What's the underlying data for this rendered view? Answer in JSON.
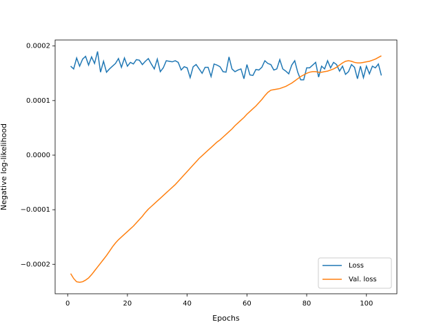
{
  "chart_data": {
    "type": "line",
    "x_label": "Epochs",
    "y_label": "Negative log-likelihood",
    "x": [
      1,
      2,
      3,
      4,
      5,
      6,
      7,
      8,
      9,
      10,
      11,
      12,
      13,
      14,
      15,
      16,
      17,
      18,
      19,
      20,
      21,
      22,
      23,
      24,
      25,
      26,
      27,
      28,
      29,
      30,
      31,
      32,
      33,
      34,
      35,
      36,
      37,
      38,
      39,
      40,
      41,
      42,
      43,
      44,
      45,
      46,
      47,
      48,
      49,
      50,
      51,
      52,
      53,
      54,
      55,
      56,
      57,
      58,
      59,
      60,
      61,
      62,
      63,
      64,
      65,
      66,
      67,
      68,
      69,
      70,
      71,
      72,
      73,
      74,
      75,
      76,
      77,
      78,
      79,
      80,
      81,
      82,
      83,
      84,
      85,
      86,
      87,
      88,
      89,
      90,
      91,
      92,
      93,
      94,
      95,
      96,
      97,
      98,
      99,
      100,
      101,
      102,
      103,
      104,
      105
    ],
    "series": [
      {
        "name": "Loss",
        "color": "#1f77b4",
        "values": [
          0.000163,
          0.000158,
          0.000178,
          0.000163,
          0.000176,
          0.000181,
          0.000165,
          0.00018,
          0.000168,
          0.00019,
          0.000152,
          0.000172,
          0.000152,
          0.000158,
          0.000163,
          0.000168,
          0.000177,
          0.000161,
          0.000178,
          0.000163,
          0.00017,
          0.000167,
          0.000175,
          0.000174,
          0.000166,
          0.000172,
          0.000177,
          0.000167,
          0.000158,
          0.000176,
          0.000153,
          0.00016,
          0.000173,
          0.000172,
          0.000171,
          0.000173,
          0.00017,
          0.000156,
          0.000162,
          0.00016,
          0.000142,
          0.000162,
          0.000166,
          0.000158,
          0.00015,
          0.000161,
          0.000161,
          0.000144,
          0.000167,
          0.000165,
          0.000162,
          0.000153,
          0.000152,
          0.00018,
          0.000158,
          0.000153,
          0.000156,
          0.000158,
          0.00014,
          0.000166,
          0.000147,
          0.000146,
          0.000157,
          0.000156,
          0.000161,
          0.000173,
          0.000168,
          0.000166,
          0.000156,
          0.000158,
          0.000175,
          0.000158,
          0.000154,
          0.000149,
          0.000165,
          0.000173,
          0.000152,
          0.000138,
          0.000138,
          0.00016,
          0.00016,
          0.000165,
          0.00017,
          0.000143,
          0.000163,
          0.000158,
          0.000173,
          0.00016,
          0.00017,
          0.000166,
          0.000154,
          0.000163,
          0.000148,
          0.000153,
          0.000166,
          0.000161,
          0.00014,
          0.000163,
          0.000142,
          0.000163,
          0.000149,
          0.000163,
          0.00016,
          0.000167,
          0.000146
        ]
      },
      {
        "name": "Val. loss",
        "color": "#ff7f0e",
        "values": [
          -0.000217,
          -0.000226,
          -0.000232,
          -0.000233,
          -0.000232,
          -0.000229,
          -0.000225,
          -0.000219,
          -0.000212,
          -0.000205,
          -0.000198,
          -0.000191,
          -0.000184,
          -0.000176,
          -0.000168,
          -0.000161,
          -0.000155,
          -0.00015,
          -0.000145,
          -0.00014,
          -0.000135,
          -0.00013,
          -0.000124,
          -0.000118,
          -0.000112,
          -0.000105,
          -9.9e-05,
          -9.4e-05,
          -8.9e-05,
          -8.4e-05,
          -7.9e-05,
          -7.4e-05,
          -6.9e-05,
          -6.4e-05,
          -5.9e-05,
          -5.4e-05,
          -4.8e-05,
          -4.2e-05,
          -3.6e-05,
          -3e-05,
          -2.4e-05,
          -1.8e-05,
          -1.2e-05,
          -6e-06,
          -1e-06,
          4e-06,
          9e-06,
          1.4e-05,
          1.9e-05,
          2.4e-05,
          2.8e-05,
          3.3e-05,
          3.8e-05,
          4.3e-05,
          4.8e-05,
          5.4e-05,
          5.9e-05,
          6.4e-05,
          6.9e-05,
          7.5e-05,
          8e-05,
          8.5e-05,
          9e-05,
          9.6e-05,
          0.000102,
          0.000109,
          0.000115,
          0.000119,
          0.00012,
          0.000121,
          0.000122,
          0.000124,
          0.000126,
          0.000129,
          0.000132,
          0.000136,
          0.00014,
          0.000144,
          0.000147,
          0.00015,
          0.000152,
          0.000153,
          0.000153,
          0.000152,
          0.000152,
          0.000153,
          0.000154,
          0.000156,
          0.000158,
          0.000161,
          0.000165,
          0.000169,
          0.000172,
          0.000173,
          0.000172,
          0.00017,
          0.000169,
          0.000169,
          0.00017,
          0.000171,
          0.000172,
          0.000174,
          0.000176,
          0.000179,
          0.000182
        ]
      }
    ],
    "xlim": [
      -4.2,
      110.2
    ],
    "xticks": [
      0,
      20,
      40,
      60,
      80,
      100
    ],
    "ylim": [
      -0.000254,
      0.000211
    ],
    "yticks": [
      {
        "value": -0.0002,
        "label": "−0.0002"
      },
      {
        "value": -0.0001,
        "label": "−0.0001"
      },
      {
        "value": 0,
        "label": "0.0000"
      },
      {
        "value": 0.0001,
        "label": "0.0001"
      },
      {
        "value": 0.0002,
        "label": "0.0002"
      }
    ],
    "legend": "lower right"
  }
}
